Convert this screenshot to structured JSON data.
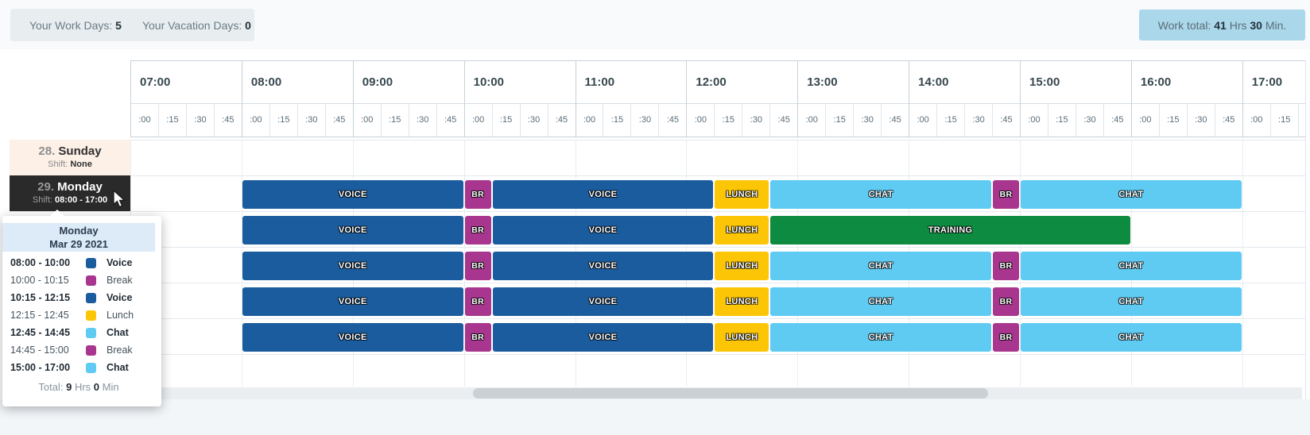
{
  "topbar": {
    "work_days": {
      "label": "Your Work Days:",
      "value": "5"
    },
    "vacation_days": {
      "label": "Your Vacation Days:",
      "value": "0"
    },
    "work_total": {
      "label": "Work total:",
      "hours": "41",
      "hours_unit": "Hrs",
      "minutes": "30",
      "minutes_unit": "Min."
    }
  },
  "palette": {
    "voice": "#1b5c9e",
    "break": "#a8358e",
    "lunch": "#fcc606",
    "chat": "#5fcbf2",
    "training": "#0d8b41",
    "selected_day_bg": "#2a2a2a",
    "day_off_bg": "#fdf0e7",
    "tooltip_header_bg": "#dcebf7",
    "summary_box_bg": "#e8eef0",
    "total_box_bg": "#aad7e9"
  },
  "timeline": {
    "hours": [
      "07:00",
      "08:00",
      "09:00",
      "10:00",
      "11:00",
      "12:00",
      "13:00",
      "14:00",
      "15:00",
      "16:00",
      "17:00"
    ],
    "quarter_labels": [
      ":00",
      ":15",
      ":30",
      ":45"
    ]
  },
  "days": [
    {
      "number": "28.",
      "name": "Sunday",
      "shift_label": "Shift:",
      "shift_value": "None",
      "style": "day-off",
      "blocks": []
    },
    {
      "number": "29.",
      "name": "Monday",
      "shift_label": "Shift:",
      "shift_value": "08:00 - 17:00",
      "style": "selected",
      "blocks": [
        {
          "label": "VOICE",
          "type": "voice",
          "start": "08:00",
          "end": "10:00"
        },
        {
          "label": "BR",
          "type": "break",
          "start": "10:00",
          "end": "10:15"
        },
        {
          "label": "VOICE",
          "type": "voice",
          "start": "10:15",
          "end": "12:15"
        },
        {
          "label": "LUNCH",
          "type": "lunch",
          "start": "12:15",
          "end": "12:45"
        },
        {
          "label": "CHAT",
          "type": "chat",
          "start": "12:45",
          "end": "14:45"
        },
        {
          "label": "BR",
          "type": "break",
          "start": "14:45",
          "end": "15:00"
        },
        {
          "label": "CHAT",
          "type": "chat",
          "start": "15:00",
          "end": "17:00"
        }
      ]
    },
    {
      "label_hidden": true,
      "blocks": [
        {
          "label": "VOICE",
          "type": "voice",
          "start": "08:00",
          "end": "10:00"
        },
        {
          "label": "BR",
          "type": "break",
          "start": "10:00",
          "end": "10:15"
        },
        {
          "label": "VOICE",
          "type": "voice",
          "start": "10:15",
          "end": "12:15"
        },
        {
          "label": "LUNCH",
          "type": "lunch",
          "start": "12:15",
          "end": "12:45"
        },
        {
          "label": "TRAINING",
          "type": "training",
          "start": "12:45",
          "end": "16:00"
        }
      ]
    },
    {
      "label_hidden": true,
      "blocks": [
        {
          "label": "VOICE",
          "type": "voice",
          "start": "08:00",
          "end": "10:00"
        },
        {
          "label": "BR",
          "type": "break",
          "start": "10:00",
          "end": "10:15"
        },
        {
          "label": "VOICE",
          "type": "voice",
          "start": "10:15",
          "end": "12:15"
        },
        {
          "label": "LUNCH",
          "type": "lunch",
          "start": "12:15",
          "end": "12:45"
        },
        {
          "label": "CHAT",
          "type": "chat",
          "start": "12:45",
          "end": "14:45"
        },
        {
          "label": "BR",
          "type": "break",
          "start": "14:45",
          "end": "15:00"
        },
        {
          "label": "CHAT",
          "type": "chat",
          "start": "15:00",
          "end": "17:00"
        }
      ]
    },
    {
      "label_hidden": true,
      "blocks": [
        {
          "label": "VOICE",
          "type": "voice",
          "start": "08:00",
          "end": "10:00"
        },
        {
          "label": "BR",
          "type": "break",
          "start": "10:00",
          "end": "10:15"
        },
        {
          "label": "VOICE",
          "type": "voice",
          "start": "10:15",
          "end": "12:15"
        },
        {
          "label": "LUNCH",
          "type": "lunch",
          "start": "12:15",
          "end": "12:45"
        },
        {
          "label": "CHAT",
          "type": "chat",
          "start": "12:45",
          "end": "14:45"
        },
        {
          "label": "BR",
          "type": "break",
          "start": "14:45",
          "end": "15:00"
        },
        {
          "label": "CHAT",
          "type": "chat",
          "start": "15:00",
          "end": "17:00"
        }
      ]
    },
    {
      "label_hidden": true,
      "blocks": [
        {
          "label": "VOICE",
          "type": "voice",
          "start": "08:00",
          "end": "10:00"
        },
        {
          "label": "BR",
          "type": "break",
          "start": "10:00",
          "end": "10:15"
        },
        {
          "label": "VOICE",
          "type": "voice",
          "start": "10:15",
          "end": "12:15"
        },
        {
          "label": "LUNCH",
          "type": "lunch",
          "start": "12:15",
          "end": "12:45"
        },
        {
          "label": "CHAT",
          "type": "chat",
          "start": "12:45",
          "end": "14:45"
        },
        {
          "label": "BR",
          "type": "break",
          "start": "14:45",
          "end": "15:00"
        },
        {
          "label": "CHAT",
          "type": "chat",
          "start": "15:00",
          "end": "17:00"
        }
      ]
    },
    {
      "label_hidden": true,
      "blocks": []
    }
  ],
  "tooltip": {
    "title": "Monday",
    "date": "Mar 29 2021",
    "entries": [
      {
        "time": "08:00 - 10:00",
        "activity": "Voice",
        "type": "voice",
        "bold": true
      },
      {
        "time": "10:00 - 10:15",
        "activity": "Break",
        "type": "break",
        "bold": false
      },
      {
        "time": "10:15 - 12:15",
        "activity": "Voice",
        "type": "voice",
        "bold": true
      },
      {
        "time": "12:15 - 12:45",
        "activity": "Lunch",
        "type": "lunch",
        "bold": false
      },
      {
        "time": "12:45 - 14:45",
        "activity": "Chat",
        "type": "chat",
        "bold": true
      },
      {
        "time": "14:45 - 15:00",
        "activity": "Break",
        "type": "break",
        "bold": false
      },
      {
        "time": "15:00 - 17:00",
        "activity": "Chat",
        "type": "chat",
        "bold": true
      }
    ],
    "total": {
      "label": "Total:",
      "hours": "9",
      "hours_unit": "Hrs",
      "minutes": "0",
      "minutes_unit": "Min"
    }
  }
}
